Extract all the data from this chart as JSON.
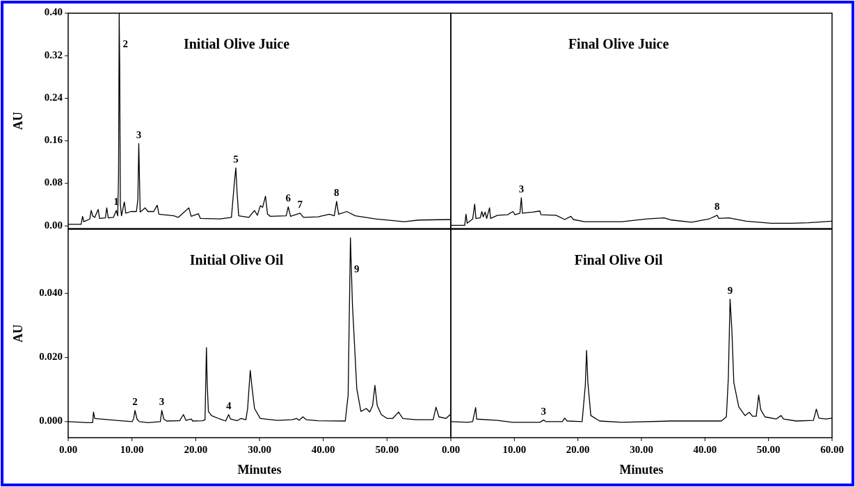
{
  "chart_data": [
    {
      "type": "line",
      "title": "Initial Olive Juice",
      "ylabel": "AU",
      "tick_labels": "y",
      "xlim": [
        0,
        60
      ],
      "ylim": [
        -0.005,
        0.4
      ],
      "yticks": [
        {
          "value": 0,
          "label": "0.00"
        },
        {
          "value": 0.08,
          "label": "0.08"
        },
        {
          "value": 0.16,
          "label": "0.16"
        },
        {
          "value": 0.24,
          "label": "0.24"
        },
        {
          "value": 0.32,
          "label": "0.32"
        },
        {
          "value": 0.4,
          "label": "0.40"
        }
      ],
      "series": [
        {
          "color": "#000000",
          "x": [
            0,
            2.03,
            2.26,
            2.44,
            3.39,
            3.61,
            3.84,
            4.16,
            4.7,
            4.92,
            5.83,
            6.05,
            6.28,
            7.09,
            7.54,
            7.77,
            7.9,
            8.0,
            8.08,
            8.18,
            8.36,
            8.81,
            9.03,
            9.8,
            10.7,
            10.93,
            11.07,
            11.29,
            12.06,
            12.51,
            13.41,
            13.96,
            14.23,
            16.58,
            17.25,
            18.92,
            19.29,
            20.42,
            20.73,
            23.8,
            25.6,
            26.05,
            26.29,
            26.5,
            26.74,
            28.32,
            29.22,
            29.67,
            30.13,
            30.49,
            30.94,
            31.26,
            31.71,
            34.19,
            34.51,
            34.87,
            36.36,
            36.9,
            39.16,
            40.97,
            41.73,
            42.09,
            42.41,
            43.68,
            45.03,
            48.19,
            52.71,
            54.97,
            59.94
          ],
          "values": [
            0.003,
            0.003,
            0.018,
            0.008,
            0.013,
            0.029,
            0.019,
            0.016,
            0.031,
            0.014,
            0.015,
            0.034,
            0.015,
            0.016,
            0.029,
            0.019,
            0.095,
            0.4,
            0.3,
            0.041,
            0.019,
            0.045,
            0.024,
            0.027,
            0.027,
            0.05,
            0.155,
            0.026,
            0.034,
            0.027,
            0.027,
            0.039,
            0.022,
            0.019,
            0.016,
            0.034,
            0.018,
            0.023,
            0.014,
            0.013,
            0.016,
            0.08,
            0.109,
            0.06,
            0.019,
            0.016,
            0.029,
            0.02,
            0.038,
            0.035,
            0.056,
            0.022,
            0.018,
            0.019,
            0.036,
            0.018,
            0.024,
            0.016,
            0.017,
            0.022,
            0.019,
            0.046,
            0.022,
            0.027,
            0.019,
            0.013,
            0.008,
            0.011,
            0.012
          ]
        }
      ],
      "annotations": [
        {
          "text": "1",
          "x": 7.54,
          "y": 0.029
        },
        {
          "text": "2",
          "x": 8.0,
          "y": 0.4
        },
        {
          "text": "3",
          "x": 11.07,
          "y": 0.155
        },
        {
          "text": "5",
          "x": 26.29,
          "y": 0.109
        },
        {
          "text": "6",
          "x": 34.51,
          "y": 0.036
        },
        {
          "text": "7",
          "x": 36.36,
          "y": 0.024
        },
        {
          "text": "8",
          "x": 42.09,
          "y": 0.046
        }
      ]
    },
    {
      "type": "line",
      "title": "Final Olive Juice",
      "tick_labels": false,
      "xlim": [
        0,
        60
      ],
      "ylim": [
        -0.005,
        0.4
      ],
      "series": [
        {
          "color": "#000000",
          "x": [
            0,
            2.19,
            2.39,
            2.58,
            3.44,
            3.76,
            3.95,
            4.62,
            4.89,
            5.09,
            5.4,
            5.64,
            6.1,
            6.26,
            7.36,
            8.92,
            9.78,
            10.1,
            10.88,
            11.1,
            11.27,
            12.84,
            14.01,
            14.21,
            16.56,
            17.93,
            18.9,
            19.3,
            21.06,
            26.93,
            30.84,
            33.58,
            34.76,
            37.89,
            40.63,
            41.92,
            42.19,
            43.76,
            46.5,
            50.41,
            53.54,
            56.28,
            60.0
          ],
          "values": [
            0.001,
            0.001,
            0.022,
            0.005,
            0.013,
            0.041,
            0.014,
            0.015,
            0.027,
            0.017,
            0.026,
            0.014,
            0.034,
            0.014,
            0.02,
            0.021,
            0.027,
            0.021,
            0.024,
            0.053,
            0.024,
            0.026,
            0.028,
            0.021,
            0.02,
            0.012,
            0.018,
            0.012,
            0.008,
            0.008,
            0.013,
            0.015,
            0.011,
            0.007,
            0.013,
            0.02,
            0.014,
            0.015,
            0.009,
            0.005,
            0.005,
            0.006,
            0.009
          ]
        }
      ],
      "annotations": [
        {
          "text": "3",
          "x": 11.1,
          "y": 0.053
        },
        {
          "text": "8",
          "x": 41.92,
          "y": 0.02
        }
      ]
    },
    {
      "type": "line",
      "title": "Initial Olive Oil",
      "ylabel": "AU",
      "xlabel": "Minutes",
      "xlim": [
        0,
        60
      ],
      "ylim": [
        -0.005,
        0.06
      ],
      "xticks": [
        {
          "value": 0,
          "label": "0.00"
        },
        {
          "value": 10,
          "label": "10.00"
        },
        {
          "value": 20,
          "label": "20.00"
        },
        {
          "value": 30,
          "label": "30.00"
        },
        {
          "value": 40,
          "label": "40.00"
        },
        {
          "value": 50,
          "label": "50.00"
        }
      ],
      "yticks": [
        {
          "value": 0,
          "label": "0.000"
        },
        {
          "value": 0.02,
          "label": "0.020"
        },
        {
          "value": 0.04,
          "label": "0.040"
        }
      ],
      "series": [
        {
          "color": "#000000",
          "x": [
            0,
            3.03,
            3.84,
            3.97,
            4.16,
            7.54,
            10.03,
            10.25,
            10.48,
            10.79,
            11.16,
            12.51,
            14.45,
            14.68,
            15.0,
            15.45,
            17.48,
            18.07,
            18.47,
            19.3,
            19.52,
            21.1,
            21.46,
            21.68,
            21.8,
            21.99,
            22.45,
            23.8,
            24.7,
            25.16,
            25.47,
            26.51,
            27.1,
            27.87,
            28.14,
            28.55,
            28.86,
            29.22,
            30.13,
            32.84,
            35.1,
            35.8,
            36.22,
            36.8,
            37.35,
            39.16,
            43.45,
            43.9,
            44.26,
            44.58,
            45.26,
            45.9,
            46.75,
            47.29,
            47.74,
            48.1,
            48.46,
            49.1,
            50.0,
            50.9,
            51.8,
            52.48,
            54.52,
            57.23,
            57.68,
            58.13,
            59.26,
            59.9
          ],
          "values": [
            0,
            -0.0003,
            -0.0003,
            0.003,
            0.001,
            0.0004,
            0,
            0.0008,
            0.0035,
            0.0008,
            0,
            -0.0003,
            0,
            0.0035,
            0.0008,
            0.0002,
            0.0003,
            0.0022,
            0.0004,
            0.0008,
            0.0002,
            0.0003,
            0.0006,
            0.0231,
            0.0119,
            0.0032,
            0.0019,
            0.0008,
            0.0002,
            0.0022,
            0.0008,
            0.0003,
            0.001,
            0.0006,
            0.0041,
            0.016,
            0.0101,
            0.0041,
            0.001,
            0.0004,
            0.0006,
            0.001,
            0.0004,
            0.0015,
            0.0006,
            0.0003,
            0.0002,
            0.0083,
            0.0573,
            0.0363,
            0.0102,
            0.0032,
            0.0041,
            0.003,
            0.005,
            0.0113,
            0.005,
            0.0022,
            0.001,
            0.001,
            0.003,
            0.001,
            0.0006,
            0.0006,
            0.0045,
            0.0015,
            0.001,
            0.0022
          ]
        }
      ],
      "annotations": [
        {
          "text": "2",
          "x": 10.48,
          "y": 0.0035
        },
        {
          "text": "3",
          "x": 14.68,
          "y": 0.0035
        },
        {
          "text": "4",
          "x": 25.16,
          "y": 0.0022
        },
        {
          "text": "9",
          "x": 44.26,
          "y": 0.0573
        }
      ]
    },
    {
      "type": "line",
      "title": "Final Olive Oil",
      "xlabel": "Minutes",
      "tick_labels": "x",
      "xlim": [
        0,
        60
      ],
      "ylim": [
        -0.005,
        0.06
      ],
      "xticks": [
        {
          "value": 0,
          "label": "0.00"
        },
        {
          "value": 10,
          "label": "10.00"
        },
        {
          "value": 20,
          "label": "20.00"
        },
        {
          "value": 30,
          "label": "30.00"
        },
        {
          "value": 40,
          "label": "40.00"
        },
        {
          "value": 50,
          "label": "50.00"
        },
        {
          "value": 60,
          "label": "60.00"
        }
      ],
      "series": [
        {
          "color": "#000000",
          "x": [
            0,
            2.66,
            3.44,
            3.91,
            4.07,
            7.36,
            9.71,
            14.01,
            14.6,
            14.99,
            17.54,
            17.93,
            18.32,
            20.67,
            21.17,
            21.37,
            21.57,
            22.04,
            23.41,
            26.93,
            34.76,
            42.58,
            43.37,
            43.68,
            43.95,
            44.23,
            44.54,
            45.32,
            46.3,
            46.97,
            47.48,
            48.07,
            48.45,
            48.77,
            49.43,
            51.19,
            51.98,
            52.37,
            54.33,
            57.07,
            57.53,
            57.93,
            59.02,
            60.0
          ],
          "values": [
            0,
            -0.0002,
            0,
            0.0044,
            0.0008,
            0.0004,
            -0.0002,
            -0.0002,
            0.0005,
            0,
            0,
            0.0011,
            0.0002,
            0,
            0.0114,
            0.0222,
            0.0122,
            0.0019,
            0.0002,
            -0.0002,
            0.0002,
            0.0002,
            0.0015,
            0.0137,
            0.0382,
            0.0288,
            0.0122,
            0.0046,
            0.0019,
            0.0029,
            0.0017,
            0.0017,
            0.0083,
            0.0038,
            0.0015,
            0.0008,
            0.0019,
            0.0008,
            0.0002,
            0.0004,
            0.0039,
            0.0011,
            0.0008,
            0.0011
          ]
        }
      ],
      "annotations": [
        {
          "text": "3",
          "x": 14.6,
          "y": 0.0005
        },
        {
          "text": "9",
          "x": 43.95,
          "y": 0.0382
        }
      ]
    }
  ]
}
